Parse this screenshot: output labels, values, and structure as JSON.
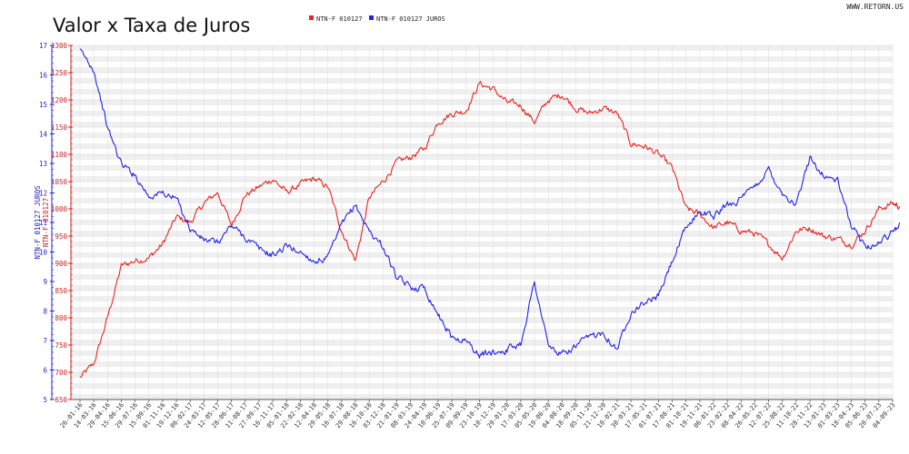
{
  "site_label": "WWW.RETORN.US",
  "chart_data": {
    "type": "line",
    "title": "Valor x Taxa de Juros",
    "legend_position": "top-center",
    "grid": true,
    "y_left": {
      "label": "NTN-F 010127 JUROS",
      "range": [
        5,
        17
      ],
      "ticks": [
        "5",
        "6",
        "7",
        "8",
        "9",
        "10",
        "11",
        "12",
        "13",
        "14",
        "15",
        "16",
        "17"
      ]
    },
    "y_right": {
      "label": "NTN-F 010127",
      "range": [
        650,
        1300
      ],
      "ticks": [
        "650",
        "700",
        "750",
        "800",
        "850",
        "900",
        "950",
        "1000",
        "1050",
        "1100",
        "1150",
        "1200",
        "1250",
        "1300"
      ]
    },
    "x_ticks": [
      "26-01-16",
      "14-03-16",
      "29-04-16",
      "15-06-16",
      "29-07-16",
      "15-09-16",
      "01-11-16",
      "19-12-16",
      "06-02-17",
      "24-03-17",
      "12-05-17",
      "28-06-17",
      "11-08-17",
      "27-09-17",
      "16-11-17",
      "05-01-18",
      "22-02-18",
      "12-04-18",
      "29-05-18",
      "16-07-18",
      "29-08-18",
      "16-10-18",
      "03-12-18",
      "21-01-19",
      "08-03-19",
      "24-04-19",
      "10-06-19",
      "25-07-19",
      "09-09-19",
      "23-10-19",
      "10-12-19",
      "29-01-20",
      "17-03-20",
      "05-05-20",
      "19-06-20",
      "04-08-20",
      "18-09-20",
      "05-11-20",
      "21-12-20",
      "10-02-21",
      "30-03-21",
      "17-05-21",
      "01-07-21",
      "17-08-21",
      "01-10-21",
      "19-11-21",
      "06-01-22",
      "23-02-22",
      "08-04-22",
      "26-05-22",
      "12-07-22",
      "25-08-22",
      "11-10-22",
      "28-11-22",
      "13-01-23",
      "01-03-23",
      "18-04-23",
      "05-06-23",
      "20-07-23",
      "04-09-23"
    ],
    "series": [
      {
        "name": "NTN-F 010127",
        "color": "#ee2222",
        "axis": "right",
        "points": [
          [
            0,
            690
          ],
          [
            1,
            715
          ],
          [
            2,
            800
          ],
          [
            3,
            895
          ],
          [
            4,
            905
          ],
          [
            5,
            910
          ],
          [
            6,
            935
          ],
          [
            7,
            985
          ],
          [
            8,
            975
          ],
          [
            9,
            1010
          ],
          [
            10,
            1030
          ],
          [
            11,
            970
          ],
          [
            12,
            1025
          ],
          [
            13,
            1040
          ],
          [
            14,
            1055
          ],
          [
            15,
            1030
          ],
          [
            16,
            1045
          ],
          [
            17,
            1055
          ],
          [
            18,
            1040
          ],
          [
            19,
            960
          ],
          [
            20,
            905
          ],
          [
            21,
            1020
          ],
          [
            22,
            1050
          ],
          [
            23,
            1085
          ],
          [
            24,
            1095
          ],
          [
            25,
            1110
          ],
          [
            26,
            1160
          ],
          [
            27,
            1175
          ],
          [
            28,
            1180
          ],
          [
            29,
            1230
          ],
          [
            30,
            1220
          ],
          [
            31,
            1195
          ],
          [
            32,
            1190
          ],
          [
            33,
            1160
          ],
          [
            34,
            1200
          ],
          [
            35,
            1210
          ],
          [
            36,
            1185
          ],
          [
            37,
            1175
          ],
          [
            38,
            1185
          ],
          [
            39,
            1175
          ],
          [
            40,
            1120
          ],
          [
            41,
            1115
          ],
          [
            42,
            1100
          ],
          [
            43,
            1075
          ],
          [
            44,
            1000
          ],
          [
            45,
            990
          ],
          [
            46,
            965
          ],
          [
            47,
            975
          ],
          [
            48,
            960
          ],
          [
            49,
            955
          ],
          [
            50,
            935
          ],
          [
            51,
            910
          ],
          [
            52,
            960
          ],
          [
            53,
            965
          ],
          [
            54,
            950
          ],
          [
            55,
            945
          ],
          [
            56,
            935
          ],
          [
            57,
            960
          ],
          [
            58,
            1000
          ],
          [
            59,
            1010
          ],
          [
            59.5,
            1005
          ]
        ]
      },
      {
        "name": "NTN-F 010127 JUROS",
        "color": "#2222ee",
        "axis": "left",
        "points": [
          [
            0,
            16.8
          ],
          [
            1,
            16.2
          ],
          [
            2,
            14.2
          ],
          [
            3,
            13.0
          ],
          [
            4,
            12.6
          ],
          [
            5,
            11.9
          ],
          [
            6,
            12.0
          ],
          [
            7,
            11.8
          ],
          [
            8,
            10.8
          ],
          [
            9,
            10.4
          ],
          [
            10,
            10.3
          ],
          [
            11,
            10.9
          ],
          [
            12,
            10.5
          ],
          [
            13,
            10.1
          ],
          [
            14,
            9.9
          ],
          [
            15,
            10.2
          ],
          [
            16,
            10.0
          ],
          [
            17,
            9.7
          ],
          [
            18,
            9.8
          ],
          [
            19,
            10.9
          ],
          [
            20,
            11.6
          ],
          [
            21,
            10.7
          ],
          [
            22,
            10.2
          ],
          [
            23,
            9.1
          ],
          [
            24,
            8.8
          ],
          [
            25,
            8.8
          ],
          [
            26,
            7.9
          ],
          [
            27,
            7.1
          ],
          [
            28,
            7.0
          ],
          [
            29,
            6.5
          ],
          [
            30,
            6.6
          ],
          [
            31,
            6.7
          ],
          [
            32,
            6.9
          ],
          [
            33,
            9.0
          ],
          [
            34,
            6.8
          ],
          [
            35,
            6.5
          ],
          [
            36,
            6.8
          ],
          [
            37,
            7.1
          ],
          [
            38,
            7.3
          ],
          [
            39,
            6.7
          ],
          [
            40,
            8.0
          ],
          [
            41,
            8.3
          ],
          [
            42,
            8.5
          ],
          [
            43,
            9.7
          ],
          [
            44,
            10.8
          ],
          [
            45,
            11.4
          ],
          [
            46,
            11.2
          ],
          [
            47,
            11.6
          ],
          [
            48,
            11.8
          ],
          [
            49,
            12.2
          ],
          [
            50,
            12.8
          ],
          [
            51,
            12.0
          ],
          [
            52,
            11.6
          ],
          [
            53,
            13.2
          ],
          [
            54,
            12.6
          ],
          [
            55,
            12.4
          ],
          [
            56,
            10.9
          ],
          [
            57,
            10.2
          ],
          [
            58,
            10.3
          ],
          [
            59,
            10.7
          ],
          [
            59.5,
            11.0
          ]
        ]
      }
    ]
  }
}
